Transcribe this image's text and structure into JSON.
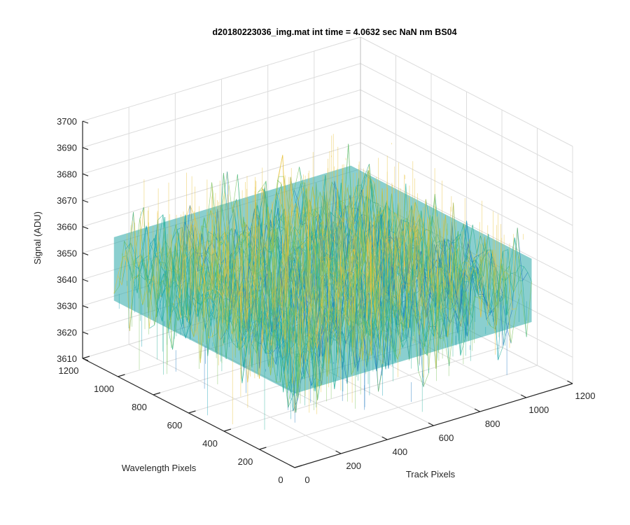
{
  "chart_data": {
    "type": "surface",
    "title": "d20180223036_img.mat int time = 4.0632 sec  NaN nm BS04",
    "xlabel": "Track Pixels",
    "ylabel": "Wavelength Pixels",
    "zlabel": "Signal (ADU)",
    "xlim": [
      0,
      1200
    ],
    "ylim": [
      0,
      1200
    ],
    "zlim": [
      3610,
      3700
    ],
    "x_ticks": [
      0,
      200,
      400,
      600,
      800,
      1000,
      1200
    ],
    "y_ticks": [
      0,
      200,
      400,
      600,
      800,
      1000,
      1200
    ],
    "z_ticks": [
      3610,
      3620,
      3630,
      3640,
      3650,
      3660,
      3670,
      3680,
      3690,
      3700
    ],
    "x_tick_labels": [
      "0",
      "200",
      "400",
      "600",
      "800",
      "1000",
      "1200"
    ],
    "y_tick_labels": [
      "0",
      "200",
      "400",
      "600",
      "800",
      "1000",
      "1200"
    ],
    "z_tick_labels": [
      "3610",
      "3620",
      "3630",
      "3640",
      "3650",
      "3660",
      "3670",
      "3680",
      "3690",
      "3700"
    ],
    "surface": {
      "x_range": [
        1,
        1024
      ],
      "y_range": [
        1,
        1024
      ],
      "mean_signal": 3650,
      "noise_std": 6,
      "colormap": [
        "#1f77c0",
        "#1aa3b5",
        "#2ab09a",
        "#7ac25a",
        "#e8c23a"
      ]
    },
    "grid": true
  }
}
